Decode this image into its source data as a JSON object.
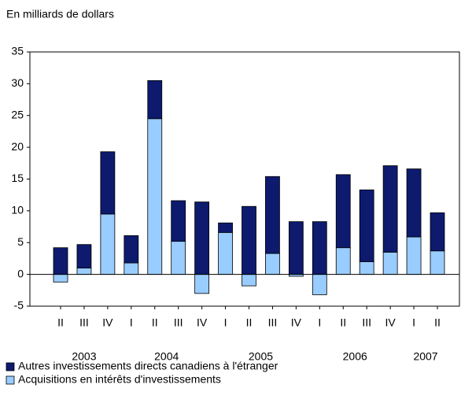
{
  "chart_data": {
    "type": "stacked_bar",
    "title": "En milliards de dollars",
    "categories": [
      "II",
      "III",
      "IV",
      "I",
      "II",
      "III",
      "IV",
      "I",
      "II",
      "III",
      "IV",
      "I",
      "II",
      "III",
      "IV",
      "I",
      "II"
    ],
    "years": [
      "2003",
      null,
      null,
      "2004",
      null,
      null,
      null,
      "2005",
      null,
      null,
      null,
      "2006",
      null,
      null,
      null,
      "2007",
      null
    ],
    "series": [
      {
        "name": "Autres investissements directs canadiens à l'étranger",
        "color": "#0d1a6e",
        "values": [
          4.2,
          3.7,
          9.8,
          4.3,
          6.0,
          6.4,
          11.4,
          1.5,
          10.7,
          12.1,
          8.3,
          8.3,
          11.5,
          11.3,
          13.6,
          10.7,
          6.0
        ]
      },
      {
        "name": "Acquisitions en intérêts d'investissements",
        "color": "#99ccff",
        "values": [
          -1.2,
          1.0,
          9.5,
          1.8,
          24.5,
          5.2,
          -3.0,
          6.6,
          -1.8,
          3.3,
          -0.3,
          -3.2,
          4.2,
          2.0,
          3.5,
          5.9,
          3.7
        ]
      }
    ],
    "ylim": [
      -5,
      35
    ],
    "yticks": [
      -5,
      0,
      5,
      10,
      15,
      20,
      25,
      30,
      35
    ],
    "grid": false
  }
}
